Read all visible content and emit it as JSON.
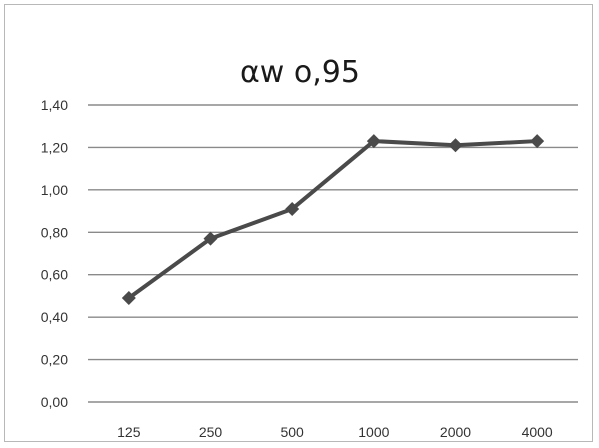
{
  "chart_data": {
    "type": "line",
    "title": "αw o,95",
    "xlabel": "",
    "ylabel": "",
    "categories": [
      "125",
      "250",
      "500",
      "1000",
      "2000",
      "4000"
    ],
    "series": [
      {
        "values": [
          0.49,
          0.77,
          0.91,
          1.23,
          1.21,
          1.23
        ]
      }
    ],
    "ylim": [
      0,
      1.4
    ],
    "yticks": [
      "1,40",
      "1,20",
      "1,00",
      "0,80",
      "0,60",
      "0,40",
      "0,20",
      "0,00"
    ],
    "grid": true,
    "legend": "none",
    "marker": "diamond",
    "line_color": "#4a4a4a"
  }
}
